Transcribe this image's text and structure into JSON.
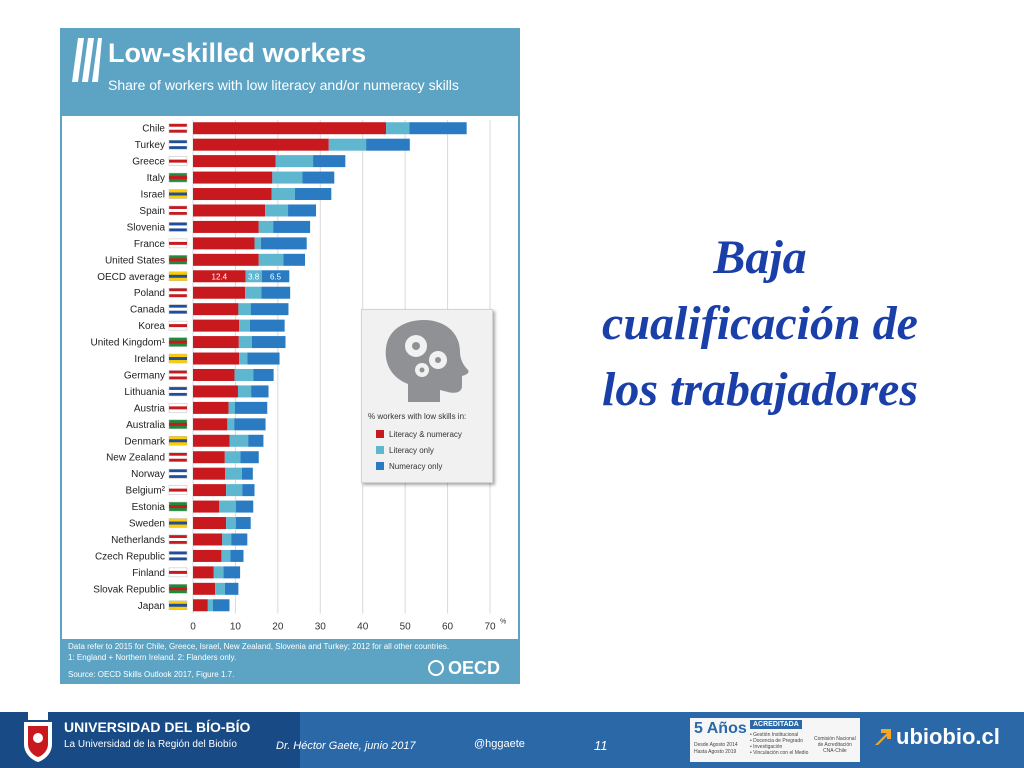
{
  "slide": {
    "title_lines": [
      "Baja",
      "cualificación de",
      "los trabajadores"
    ]
  },
  "infographic": {
    "heading": "Low-skilled workers",
    "subheading": "Share of workers with low literacy and/or numeracy skills",
    "notes": [
      "Data refer to 2015 for Chile, Greece, Israel, New Zealand, Slovenia and Turkey; 2012 for all other countries.",
      "1: England + Northern Ireland. 2: Flanders only."
    ],
    "source": "Source: OECD Skills Outlook 2017, Figure 1.7.",
    "logo_text": "OECD",
    "legend": {
      "title": "% workers with low skills in:",
      "items": [
        "Literacy & numeracy",
        "Literacy only",
        "Numeracy only"
      ]
    }
  },
  "chart_data": {
    "type": "bar",
    "orientation": "horizontal",
    "stacked": true,
    "title": "Low-skilled workers",
    "subtitle": "Share of workers with low literacy and/or numeracy skills",
    "x_unit": "%",
    "xlim": [
      0,
      70
    ],
    "xticks": [
      0,
      10,
      20,
      30,
      40,
      50,
      60,
      70
    ],
    "grid": true,
    "legend_placement": "right-middle",
    "categories": [
      "Chile",
      "Turkey",
      "Greece",
      "Italy",
      "Israel",
      "Spain",
      "Slovenia",
      "France",
      "United States",
      "OECD average",
      "Poland",
      "Canada",
      "Korea",
      "United Kingdom¹",
      "Ireland",
      "Germany",
      "Lithuania",
      "Austria",
      "Australia",
      "Denmark",
      "New Zealand",
      "Norway",
      "Belgium²",
      "Estonia",
      "Sweden",
      "Netherlands",
      "Czech Republic",
      "Finland",
      "Slovak Republic",
      "Japan"
    ],
    "series": [
      {
        "name": "Literacy & numeracy",
        "color": "#c8191f",
        "values": [
          45.5,
          32,
          19.5,
          18.7,
          18.5,
          17,
          15.5,
          14.5,
          15.5,
          12.4,
          12.3,
          10.7,
          10.9,
          10.8,
          10.9,
          9.8,
          10.6,
          8.4,
          8.1,
          8.6,
          7.5,
          7.6,
          7.8,
          6.2,
          7.8,
          6.9,
          6.7,
          4.9,
          5.2,
          3.5
        ]
      },
      {
        "name": "Literacy only",
        "color": "#5fb7cf",
        "values": [
          5.5,
          8.8,
          8.8,
          7.1,
          5.5,
          5.4,
          3.4,
          1.5,
          5.8,
          3.8,
          3.8,
          2.9,
          2.5,
          3.1,
          1.9,
          4.4,
          3.1,
          1.5,
          1.6,
          4.4,
          3.7,
          3.9,
          3.8,
          3.9,
          2.3,
          2.1,
          2.1,
          2.3,
          2.3,
          1.2
        ]
      },
      {
        "name": "Numeracy only",
        "color": "#2a7bc2",
        "values": [
          13.5,
          10.3,
          7.6,
          7.5,
          8.6,
          6.6,
          8.7,
          10.8,
          5.1,
          6.5,
          6.8,
          8.9,
          8.2,
          7.9,
          7.6,
          4.8,
          4.1,
          7.6,
          7.4,
          3.6,
          4.3,
          2.6,
          2.9,
          4.1,
          3.5,
          3.8,
          3.1,
          3.9,
          3.2,
          3.9
        ]
      }
    ],
    "data_labels": {
      "category": "OECD average",
      "values": [
        "12.4",
        "3.8",
        "6.5"
      ]
    }
  },
  "footer": {
    "university": "UNIVERSIDAD DEL BÍO-BÍO",
    "tagline": "La Universidad de la Región del Biobío",
    "author": "Dr. Héctor Gaete,  junio 2017",
    "twitter": "@hggaete",
    "page_number": "11",
    "accreditation": {
      "years": "5 Años",
      "badge": "ACREDITADA",
      "range": [
        "Desde Agosto 2014",
        "Hasta Agosto 2019"
      ],
      "areas": [
        "• Gestión Institucional",
        "• Docencia de Pregrado",
        "• Investigación",
        "• Vinculación con el Medio"
      ],
      "agency": [
        "Comisión Nacional",
        "de Acreditación",
        "CNA-Chile"
      ]
    },
    "website": "ubiobio.cl"
  }
}
